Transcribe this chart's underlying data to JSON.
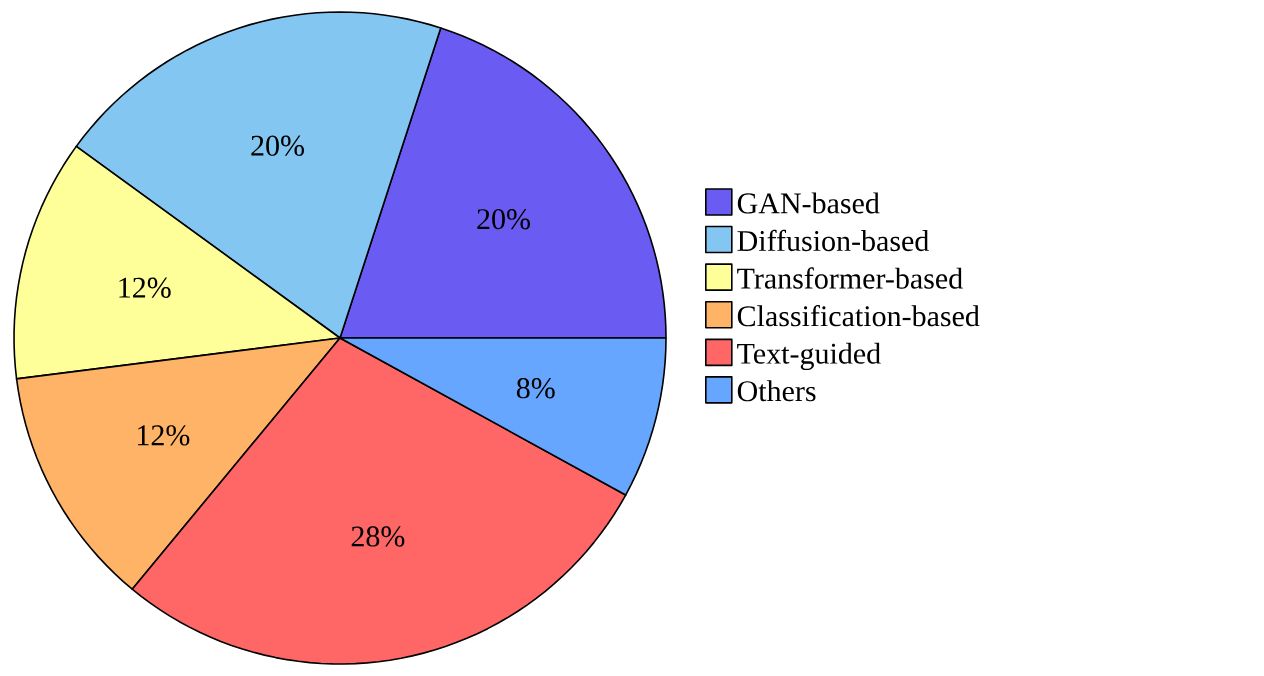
{
  "chart_data": {
    "type": "pie",
    "categories": [
      "GAN-based",
      "Diffusion-based",
      "Transformer-based",
      "Classification-based",
      "Text-guided",
      "Others"
    ],
    "values": [
      20,
      20,
      12,
      12,
      28,
      8
    ],
    "colors": [
      "#6a5cf2",
      "#84c6f2",
      "#ffff99",
      "#ffb366",
      "#ff6666",
      "#66a6ff"
    ],
    "value_labels": [
      "20%",
      "20%",
      "12%",
      "12%",
      "28%",
      "8%"
    ],
    "legend": "right"
  }
}
